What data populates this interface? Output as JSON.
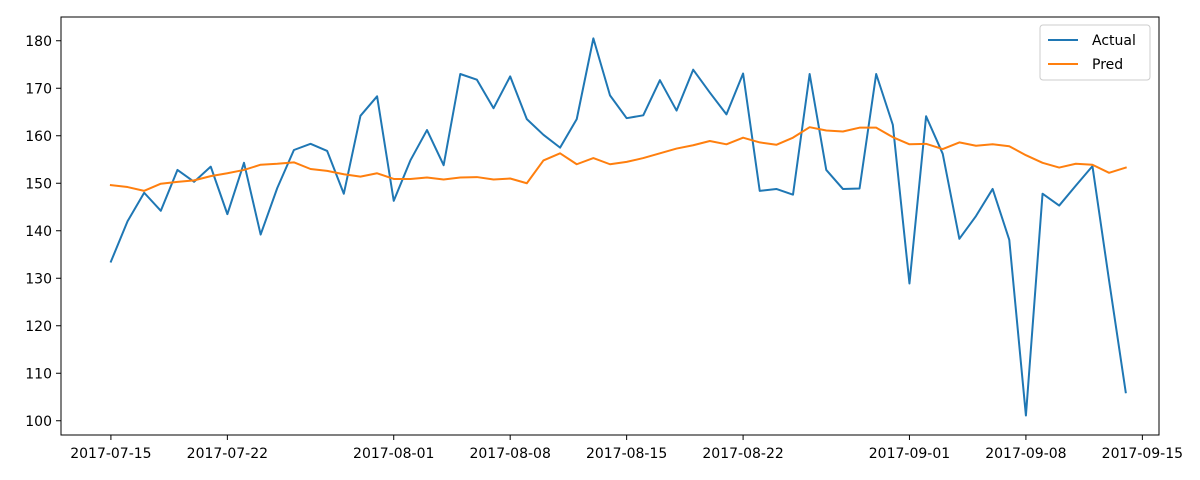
{
  "chart_data": {
    "type": "line",
    "title": "",
    "xlabel": "",
    "ylabel": "",
    "x_ticks": [
      "2017-07-15",
      "2017-07-22",
      "2017-08-01",
      "2017-08-08",
      "2017-08-15",
      "2017-08-22",
      "2017-09-01",
      "2017-09-08",
      "2017-09-15"
    ],
    "y_ticks": [
      100,
      110,
      120,
      130,
      140,
      150,
      160,
      170,
      180
    ],
    "xlim": [
      "2017-07-12",
      "2017-09-16"
    ],
    "ylim": [
      97,
      185
    ],
    "grid": false,
    "legend_position": "top-right",
    "x": [
      "2017-07-15",
      "2017-07-16",
      "2017-07-17",
      "2017-07-18",
      "2017-07-19",
      "2017-07-20",
      "2017-07-21",
      "2017-07-22",
      "2017-07-23",
      "2017-07-24",
      "2017-07-25",
      "2017-07-26",
      "2017-07-27",
      "2017-07-28",
      "2017-07-29",
      "2017-07-30",
      "2017-07-31",
      "2017-08-01",
      "2017-08-02",
      "2017-08-03",
      "2017-08-04",
      "2017-08-05",
      "2017-08-06",
      "2017-08-07",
      "2017-08-08",
      "2017-08-09",
      "2017-08-10",
      "2017-08-11",
      "2017-08-12",
      "2017-08-13",
      "2017-08-14",
      "2017-08-15",
      "2017-08-16",
      "2017-08-17",
      "2017-08-18",
      "2017-08-19",
      "2017-08-20",
      "2017-08-21",
      "2017-08-22",
      "2017-08-23",
      "2017-08-24",
      "2017-08-25",
      "2017-08-26",
      "2017-08-27",
      "2017-08-28",
      "2017-08-29",
      "2017-08-30",
      "2017-08-31",
      "2017-09-01",
      "2017-09-02",
      "2017-09-03",
      "2017-09-04",
      "2017-09-05",
      "2017-09-06",
      "2017-09-07",
      "2017-09-08",
      "2017-09-09",
      "2017-09-10",
      "2017-09-11",
      "2017-09-12",
      "2017-09-13",
      "2017-09-14"
    ],
    "series": [
      {
        "name": "Actual",
        "color": "#1f77b4",
        "values": [
          133.5,
          142,
          148,
          144.2,
          152.8,
          150.3,
          153.5,
          143.5,
          154.3,
          139.2,
          149,
          157,
          158.3,
          156.8,
          147.8,
          164.2,
          168.3,
          146.3,
          154.8,
          161.2,
          153.8,
          173,
          171.8,
          165.8,
          172.5,
          163.5,
          160.2,
          157.5,
          163.5,
          180.5,
          168.5,
          163.7,
          164.3,
          171.7,
          165.3,
          173.9,
          169.1,
          164.5,
          173.1,
          148.4,
          148.8,
          147.6,
          173,
          152.8,
          148.8,
          148.9,
          173,
          162.3,
          128.9,
          164.1,
          156.2,
          138.3,
          143.1,
          148.8,
          138.1,
          101.1,
          147.8,
          145.3,
          149.5,
          153.6,
          129.5,
          106
        ]
      },
      {
        "name": "Pred",
        "color": "#ff7f0e",
        "values": [
          149.6,
          149.2,
          148.4,
          149.9,
          150.3,
          150.6,
          151.5,
          152.1,
          152.8,
          153.9,
          154.1,
          154.4,
          153,
          152.6,
          151.9,
          151.4,
          152.1,
          150.9,
          150.9,
          151.2,
          150.8,
          151.2,
          151.3,
          150.8,
          151,
          150,
          154.8,
          156.3,
          154,
          155.3,
          154,
          154.5,
          155.3,
          156.3,
          157.3,
          158,
          158.9,
          158.2,
          159.6,
          158.6,
          158.1,
          159.6,
          161.8,
          161.1,
          160.9,
          161.7,
          161.7,
          159.7,
          158.2,
          158.3,
          157.2,
          158.6,
          157.9,
          158.2,
          157.8,
          155.9,
          154.3,
          153.3,
          154.1,
          153.9,
          152.2,
          153.3
        ]
      }
    ]
  }
}
